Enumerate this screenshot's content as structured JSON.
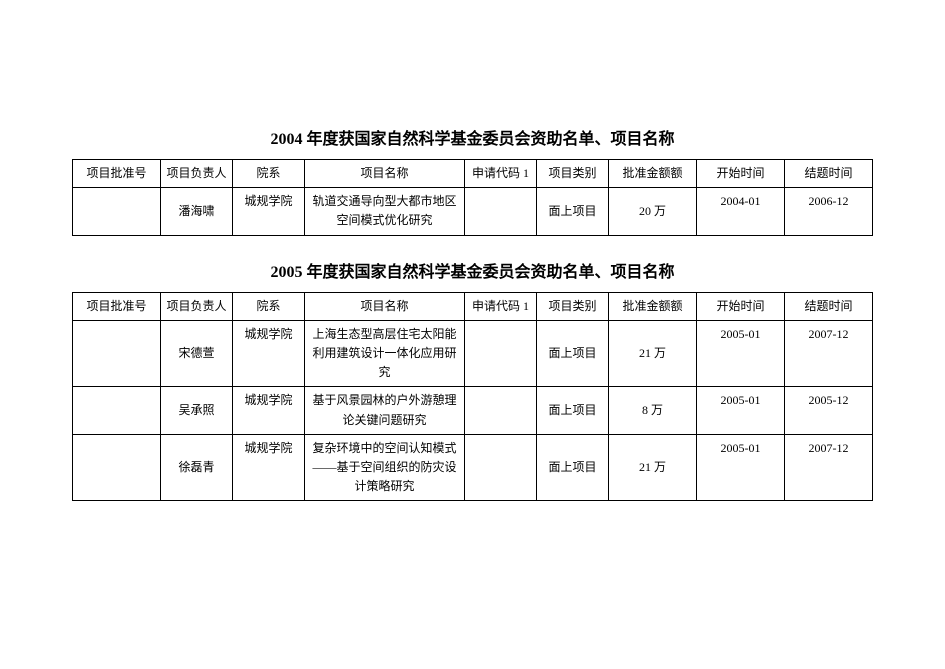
{
  "sections": [
    {
      "title": "2004 年度获国家自然科学基金委员会资助名单、项目名称",
      "columns": [
        "项目批准号",
        "项目负责人",
        "院系",
        "项目名称",
        "申请代码 1",
        "项目类别",
        "批准金额额",
        "开始时间",
        "结题时间"
      ],
      "rows": [
        {
          "approval": "",
          "person": "潘海啸",
          "dept": "城规学院",
          "project": "轨道交通导向型大都市地区空间模式优化研究",
          "code": "",
          "category": "面上项目",
          "amount": "20 万",
          "start": "2004-01",
          "end": "2006-12"
        }
      ]
    },
    {
      "title": "2005 年度获国家自然科学基金委员会资助名单、项目名称",
      "columns": [
        "项目批准号",
        "项目负责人",
        "院系",
        "项目名称",
        "申请代码 1",
        "项目类别",
        "批准金额额",
        "开始时间",
        "结题时间"
      ],
      "rows": [
        {
          "approval": "",
          "person": "宋德萱",
          "dept": "城规学院",
          "project": "上海生态型高层住宅太阳能利用建筑设计一体化应用研究",
          "code": "",
          "category": "面上项目",
          "amount": "21 万",
          "start": "2005-01",
          "end": "2007-12"
        },
        {
          "approval": "",
          "person": "吴承照",
          "dept": "城规学院",
          "project": "基于风景园林的户外游憩理论关键问题研究",
          "code": "",
          "category": "面上项目",
          "amount": "8 万",
          "start": "2005-01",
          "end": "2005-12"
        },
        {
          "approval": "",
          "person": "徐磊青",
          "dept": "城规学院",
          "project": "复杂环境中的空间认知模式\n——基于空间组织的防灾设计策略研究",
          "code": "",
          "category": "面上项目",
          "amount": "21 万",
          "start": "2005-01",
          "end": "2007-12"
        }
      ]
    }
  ]
}
